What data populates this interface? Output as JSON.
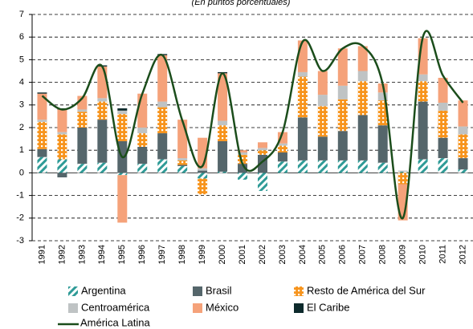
{
  "chart_data": {
    "type": "stacked-bar-line",
    "subtitle": "(En puntos porcentuales)",
    "categories": [
      "1991",
      "1992",
      "1993",
      "1994",
      "1995",
      "1996",
      "1997",
      "1998",
      "1999",
      "2000",
      "2001",
      "2002",
      "2003",
      "2004",
      "2005",
      "2006",
      "2007",
      "2008",
      "2009",
      "2010",
      "2011",
      "2012"
    ],
    "series": [
      {
        "name": "Argentina",
        "color": "#2f9b97",
        "values": [
          0.7,
          0.6,
          0.4,
          0.45,
          -0.1,
          0.4,
          0.6,
          0.3,
          -0.25,
          0.05,
          -0.3,
          -0.8,
          0.5,
          0.55,
          0.55,
          0.55,
          0.55,
          0.45,
          0.05,
          0.6,
          0.65,
          0.15
        ]
      },
      {
        "name": "Brasil",
        "color": "#55666b",
        "values": [
          0.35,
          -0.2,
          1.6,
          1.9,
          1.4,
          0.75,
          1.15,
          0.05,
          0.1,
          1.35,
          0.4,
          0.8,
          0.4,
          1.9,
          1.05,
          1.3,
          2.0,
          1.65,
          0.0,
          2.55,
          0.9,
          0.5
        ]
      },
      {
        "name": "Resto de América del Sur",
        "color": "#f7941d",
        "values": [
          1.2,
          1.1,
          0.7,
          0.8,
          1.2,
          0.6,
          1.15,
          0.2,
          -0.7,
          0.7,
          0.4,
          0.2,
          0.3,
          1.8,
          1.35,
          1.4,
          1.5,
          1.1,
          -0.5,
          0.9,
          1.2,
          1.05
        ]
      },
      {
        "name": "Centroamérica",
        "color": "#bfc3c4",
        "values": [
          0.1,
          0.1,
          0.1,
          0.15,
          0.15,
          0.25,
          0.25,
          0.1,
          0.1,
          0.2,
          0.1,
          0.1,
          0.1,
          0.2,
          0.5,
          0.6,
          0.45,
          0.35,
          0.05,
          0.3,
          0.35,
          0.35
        ]
      },
      {
        "name": "México",
        "color": "#f5a27a",
        "values": [
          1.15,
          1.0,
          0.6,
          1.4,
          -2.1,
          1.5,
          2.05,
          1.7,
          1.35,
          2.1,
          0.1,
          0.25,
          0.5,
          1.4,
          1.05,
          1.65,
          1.1,
          0.4,
          -1.6,
          1.6,
          1.1,
          1.15
        ]
      },
      {
        "name": "El Caribe",
        "color": "#0d2a2c",
        "values": [
          0.05,
          0.05,
          0.0,
          0.05,
          0.1,
          0.0,
          0.05,
          0.0,
          0.0,
          0.05,
          0.0,
          0.0,
          0.0,
          0.0,
          0.0,
          0.0,
          0.0,
          0.0,
          0.0,
          0.0,
          0.0,
          0.0
        ]
      }
    ],
    "line": {
      "name": "América Latina",
      "color": "#1b4d1b",
      "values": [
        3.4,
        2.8,
        3.3,
        4.7,
        0.7,
        3.5,
        5.2,
        2.3,
        0.3,
        4.4,
        0.4,
        0.5,
        1.8,
        5.8,
        4.5,
        5.5,
        5.6,
        3.9,
        -2.0,
        6.0,
        4.3,
        3.1
      ]
    },
    "ylim": [
      -3,
      7
    ],
    "yticks": [
      -3,
      -2,
      -1,
      0,
      1,
      2,
      3,
      4,
      5,
      6,
      7
    ],
    "grid": true
  }
}
